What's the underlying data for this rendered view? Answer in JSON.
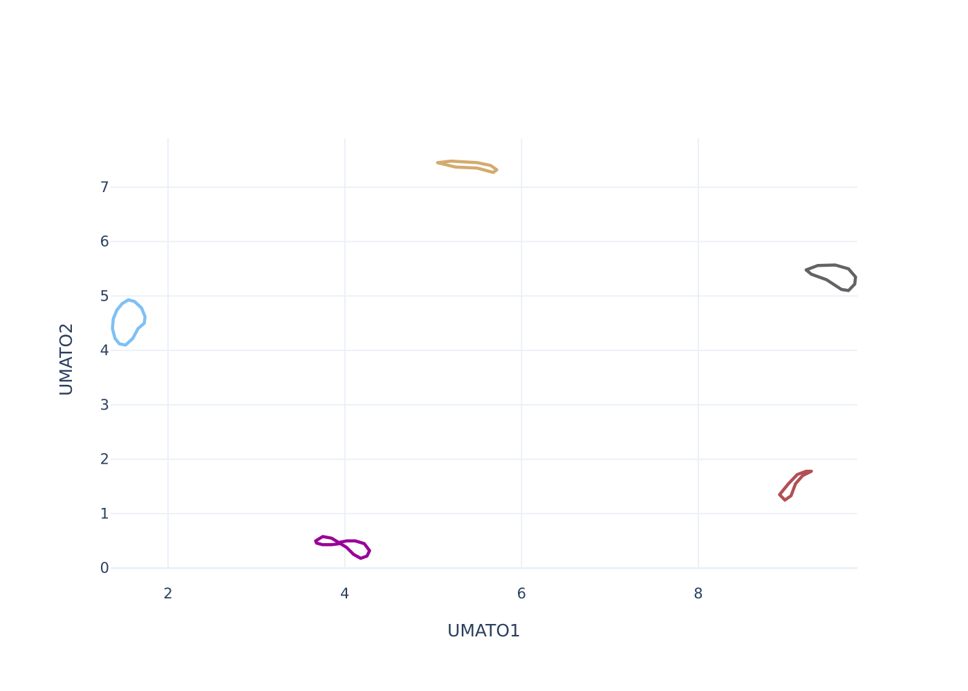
{
  "chart_data": {
    "type": "line",
    "xlabel": "UMATO1",
    "ylabel": "UMATO2",
    "xlim": [
      1.35,
      9.8
    ],
    "ylim": [
      -0.1,
      7.9
    ],
    "xticks": [
      2,
      4,
      6,
      8
    ],
    "yticks": [
      0,
      1,
      2,
      3,
      4,
      5,
      6,
      7
    ],
    "grid": true,
    "series": [
      {
        "color": "#7ec0f5",
        "x": [
          1.55,
          1.62,
          1.7,
          1.74,
          1.73,
          1.66,
          1.6,
          1.52,
          1.45,
          1.4,
          1.37,
          1.38,
          1.42,
          1.48,
          1.55
        ],
        "y": [
          4.93,
          4.9,
          4.78,
          4.62,
          4.5,
          4.4,
          4.22,
          4.1,
          4.12,
          4.22,
          4.4,
          4.58,
          4.74,
          4.86,
          4.93
        ]
      },
      {
        "color": "#990099",
        "x": [
          3.67,
          3.75,
          3.85,
          3.93,
          4.02,
          4.12,
          4.22,
          4.28,
          4.25,
          4.18,
          4.1,
          4.02,
          3.95,
          3.85,
          3.75,
          3.68,
          3.67
        ],
        "y": [
          0.5,
          0.58,
          0.55,
          0.47,
          0.5,
          0.5,
          0.45,
          0.32,
          0.22,
          0.18,
          0.25,
          0.38,
          0.45,
          0.43,
          0.43,
          0.46,
          0.5
        ]
      },
      {
        "color": "#d4aa6e",
        "x": [
          5.05,
          5.2,
          5.5,
          5.65,
          5.72,
          5.68,
          5.5,
          5.25,
          5.05
        ],
        "y": [
          7.45,
          7.48,
          7.45,
          7.4,
          7.32,
          7.27,
          7.35,
          7.37,
          7.45
        ]
      },
      {
        "color": "#636363",
        "x": [
          9.22,
          9.35,
          9.55,
          9.7,
          9.78,
          9.77,
          9.7,
          9.62,
          9.45,
          9.28,
          9.22
        ],
        "y": [
          5.48,
          5.56,
          5.57,
          5.5,
          5.35,
          5.22,
          5.1,
          5.12,
          5.3,
          5.4,
          5.48
        ]
      },
      {
        "color": "#b04f55",
        "x": [
          8.92,
          9.02,
          9.12,
          9.22,
          9.28,
          9.18,
          9.1,
          9.05,
          8.98,
          8.92
        ],
        "y": [
          1.35,
          1.55,
          1.72,
          1.78,
          1.78,
          1.7,
          1.55,
          1.33,
          1.25,
          1.35
        ]
      }
    ]
  }
}
